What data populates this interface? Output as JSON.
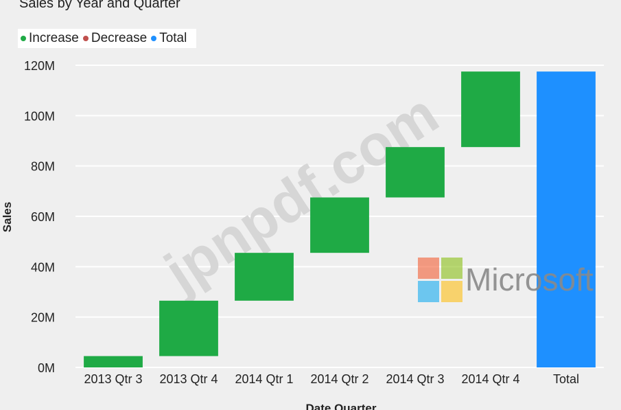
{
  "chart_data": {
    "type": "bar",
    "subtype": "waterfall",
    "title": "Sales by Year and Quarter",
    "xlabel": "Date Quarter",
    "ylabel": "Sales",
    "categories": [
      "2013 Qtr 3",
      "2013 Qtr 4",
      "2014 Qtr 1",
      "2014 Qtr 2",
      "2014 Qtr 3",
      "2014 Qtr 4",
      "Total"
    ],
    "series": [
      {
        "name": "Increase",
        "color": "#1faa45",
        "values": [
          4.5,
          22,
          19,
          22,
          20,
          30,
          null
        ]
      },
      {
        "name": "Decrease",
        "color": "#c0504d",
        "values": [
          null,
          null,
          null,
          null,
          null,
          null,
          null
        ]
      },
      {
        "name": "Total",
        "color": "#1e90ff",
        "values": [
          null,
          null,
          null,
          null,
          null,
          null,
          118
        ]
      }
    ],
    "ranges": [
      [
        0,
        4.5
      ],
      [
        4.5,
        26.5
      ],
      [
        26.5,
        45.5
      ],
      [
        45.5,
        67.5
      ],
      [
        67.5,
        87.5
      ],
      [
        87.5,
        117.5
      ],
      [
        0,
        117.5
      ]
    ],
    "bar_types": [
      "increase",
      "increase",
      "increase",
      "increase",
      "increase",
      "increase",
      "total"
    ],
    "y_ticks": [
      "0M",
      "20M",
      "40M",
      "60M",
      "80M",
      "100M",
      "120M"
    ],
    "ylim": [
      0,
      120
    ],
    "grid": true,
    "legend_position": "top-left"
  },
  "legend": [
    {
      "label": "Increase",
      "color": "#1faa45"
    },
    {
      "label": "Decrease",
      "color": "#c0504d"
    },
    {
      "label": "Total",
      "color": "#1e90ff"
    }
  ],
  "watermark": {
    "text": "jpnpdf.com",
    "color": "#d6d6d6"
  },
  "logo": {
    "text": "Microsoft",
    "colors": [
      "#f25022",
      "#7fba00",
      "#00a4ef",
      "#ffb900"
    ]
  }
}
